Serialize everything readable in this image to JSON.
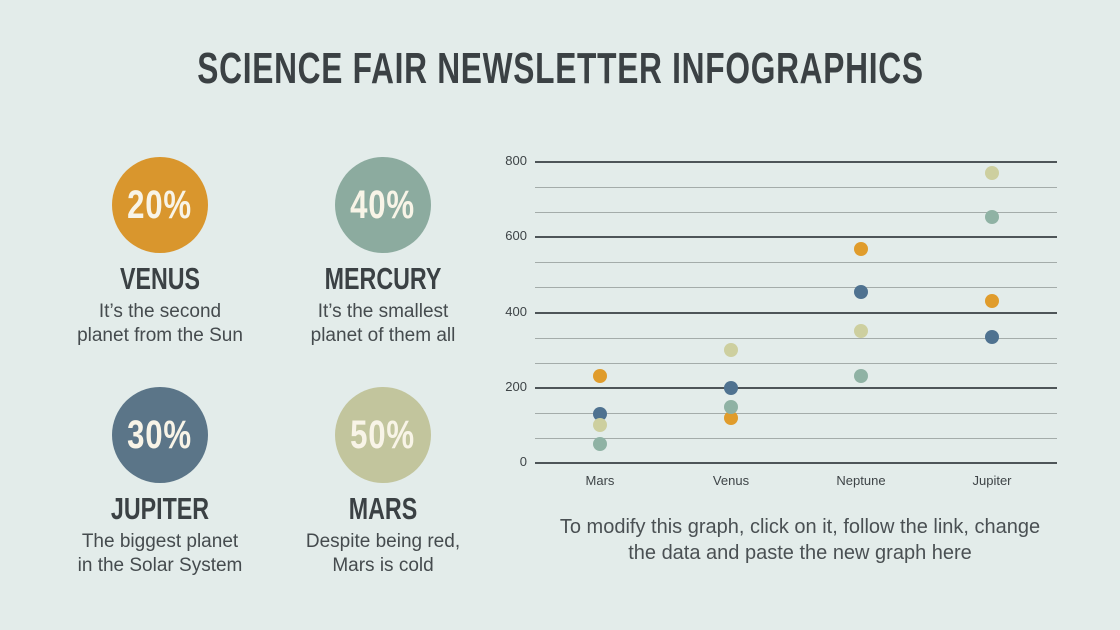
{
  "title": "SCIENCE FAIR NEWSLETTER INFOGRAPHICS",
  "stats": [
    {
      "id": "venus",
      "percent": "20%",
      "name": "VENUS",
      "description": "It’s the second\nplanet from the Sun",
      "circle_color": "#d9962d"
    },
    {
      "id": "mercury",
      "percent": "40%",
      "name": "MERCURY",
      "description": "It’s the smallest\nplanet of them all",
      "circle_color": "#8cab9f"
    },
    {
      "id": "jupiter",
      "percent": "30%",
      "name": "JUPITER",
      "description": "The biggest planet\nin the Solar System",
      "circle_color": "#5b7588"
    },
    {
      "id": "mars",
      "percent": "50%",
      "name": "MARS",
      "description": "Despite being red,\nMars is cold",
      "circle_color": "#c2c59d"
    }
  ],
  "chart_data": {
    "type": "scatter",
    "categories": [
      "Mars",
      "Venus",
      "Neptune",
      "Jupiter"
    ],
    "series": [
      {
        "name": "orange-series",
        "color": "#e09c2c",
        "values": [
          230,
          120,
          570,
          430
        ]
      },
      {
        "name": "blue-series",
        "color": "#4f7290",
        "values": [
          130,
          200,
          455,
          335
        ]
      },
      {
        "name": "olive-series",
        "color": "#cdcf9f",
        "values": [
          100,
          300,
          350,
          770
        ]
      },
      {
        "name": "teal-series",
        "color": "#8fb2a4",
        "values": [
          50,
          150,
          230,
          655
        ]
      }
    ],
    "ylim": [
      0,
      800
    ],
    "y_major_ticks": [
      0,
      200,
      400,
      600,
      800
    ],
    "minor_divisions_per_major": 3,
    "grid": "horizontal-only",
    "legend": "none",
    "title": "",
    "xlabel": "",
    "ylabel": ""
  },
  "chart_caption": "To modify this graph, click on it, follow the link, change\nthe data and paste the new graph here"
}
